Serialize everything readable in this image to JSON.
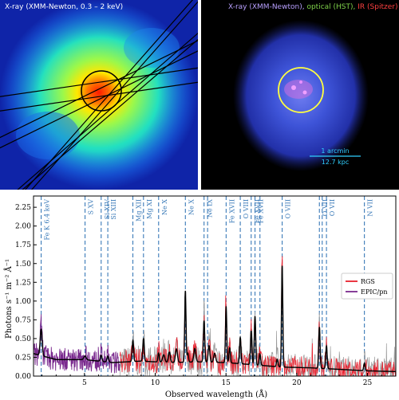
{
  "left_panel": {
    "title": "X-ray (XMM-Newton, 0.3 – 2 keV)"
  },
  "right_panel": {
    "title_xray": "X-ray (XMM-Newton),",
    "title_optical": "optical (HST),",
    "title_ir": "IR (Spitzer)",
    "scalebar_angle": "1 arcmin",
    "scalebar_dist": "12.7 kpc",
    "colors": {
      "xray": "#b9a0ff",
      "optical": "#7fd24a",
      "ir": "#ff4040",
      "scalebar": "#30d0ff",
      "circle": "#ffff40"
    }
  },
  "chart_data": {
    "type": "line",
    "xlabel": "Observed wavelength (Å)",
    "ylabel": "Photons s⁻¹ m⁻² Å⁻¹",
    "xlim": [
      1.4,
      27.0
    ],
    "ylim": [
      0.0,
      2.4
    ],
    "xticks": [
      5,
      10,
      15,
      20,
      25
    ],
    "yticks": [
      0.0,
      0.25,
      0.5,
      0.75,
      1.0,
      1.25,
      1.5,
      1.75,
      2.0,
      2.25
    ],
    "xtick_labels": [
      "5",
      "10",
      "15",
      "20",
      "25"
    ],
    "ytick_labels": [
      "0.00",
      "0.25",
      "0.50",
      "0.75",
      "1.00",
      "1.25",
      "1.50",
      "1.75",
      "2.00",
      "2.25"
    ],
    "legend": {
      "placement": "right",
      "entries": [
        {
          "name": "RGS",
          "color": "#e8212e"
        },
        {
          "name": "EPIC/pn",
          "color": "#7a2a8e"
        }
      ]
    },
    "lines": [
      {
        "label": "Fe K 6.4 keV",
        "x": 1.94
      },
      {
        "label": "S XV",
        "x": 5.04
      },
      {
        "label": "Si XIV",
        "x": 6.18
      },
      {
        "label": "Si XIII",
        "x": 6.65
      },
      {
        "label": "Mg XII",
        "x": 8.42
      },
      {
        "label": "Mg XI",
        "x": 9.17
      },
      {
        "label": "Ne X",
        "x": 10.24
      },
      {
        "label": "Ne X",
        "x": 12.13
      },
      {
        "label": "Ne IX",
        "x": 13.45
      },
      {
        "label": "Fe XVII",
        "x": 15.01
      },
      {
        "label": "O VIII",
        "x": 16.01
      },
      {
        "label": "Fe XVII",
        "x": 16.78
      },
      {
        "label": "Fe XVII",
        "x": 17.05
      },
      {
        "label": "O VIII",
        "x": 18.97
      },
      {
        "label": "O VII",
        "x": 21.6
      },
      {
        "label": "O VII",
        "x": 22.1
      },
      {
        "label": "N VII",
        "x": 24.78
      }
    ],
    "extra_dashed_x": [
      13.7,
      17.4,
      21.8
    ],
    "model": {
      "continuum": [
        [
          1.4,
          0.3
        ],
        [
          3,
          0.22
        ],
        [
          5,
          0.22
        ],
        [
          7,
          0.18
        ],
        [
          9,
          0.2
        ],
        [
          11,
          0.18
        ],
        [
          13,
          0.19
        ],
        [
          15,
          0.18
        ],
        [
          17,
          0.15
        ],
        [
          19,
          0.12
        ],
        [
          21,
          0.11
        ],
        [
          23,
          0.09
        ],
        [
          25,
          0.07
        ],
        [
          27,
          0.06
        ]
      ],
      "peaks": [
        [
          1.94,
          0.35,
          0.07
        ],
        [
          5.04,
          0.05,
          0.08
        ],
        [
          6.18,
          0.08,
          0.06
        ],
        [
          6.65,
          0.08,
          0.06
        ],
        [
          8.42,
          0.28,
          0.05
        ],
        [
          9.17,
          0.3,
          0.05
        ],
        [
          10.24,
          0.12,
          0.05
        ],
        [
          10.6,
          0.1,
          0.08
        ],
        [
          11.0,
          0.14,
          0.07
        ],
        [
          11.5,
          0.18,
          0.07
        ],
        [
          12.13,
          0.95,
          0.045
        ],
        [
          12.3,
          0.12,
          0.05
        ],
        [
          12.8,
          0.18,
          0.07
        ],
        [
          13.45,
          0.55,
          0.05
        ],
        [
          13.8,
          0.22,
          0.06
        ],
        [
          14.2,
          0.12,
          0.07
        ],
        [
          15.01,
          0.75,
          0.045
        ],
        [
          15.26,
          0.2,
          0.05
        ],
        [
          16.01,
          0.35,
          0.05
        ],
        [
          16.78,
          0.45,
          0.05
        ],
        [
          17.05,
          0.65,
          0.05
        ],
        [
          17.4,
          0.15,
          0.05
        ],
        [
          18.62,
          0.1,
          0.05
        ],
        [
          18.97,
          1.35,
          0.045
        ],
        [
          21.6,
          0.55,
          0.05
        ],
        [
          22.1,
          0.3,
          0.05
        ],
        [
          24.78,
          0.1,
          0.05
        ]
      ]
    },
    "epic_range": [
      1.4,
      7.5
    ],
    "rgs_range": [
      7.5,
      27.0
    ]
  }
}
